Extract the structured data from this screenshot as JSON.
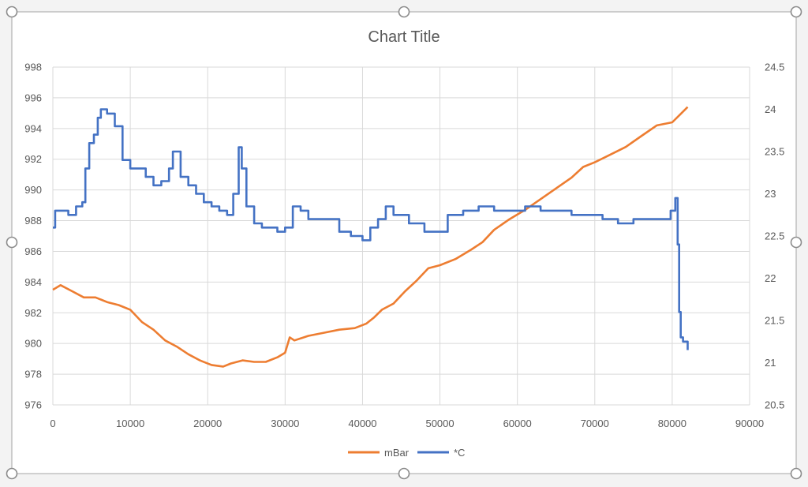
{
  "chart_data": {
    "type": "line",
    "title": "Chart Title",
    "xlabel": "",
    "ylabel": "",
    "y2label": "",
    "grid": true,
    "legend_position": "bottom",
    "xlim": [
      0,
      90000
    ],
    "xticks": [
      0,
      10000,
      20000,
      30000,
      40000,
      50000,
      60000,
      70000,
      80000,
      90000
    ],
    "ylim": [
      976,
      998
    ],
    "yticks": [
      976,
      978,
      980,
      982,
      984,
      986,
      988,
      990,
      992,
      994,
      996,
      998
    ],
    "y2lim": [
      20.5,
      24.5
    ],
    "y2ticks": [
      20.5,
      21,
      21.5,
      22,
      22.5,
      23,
      23.5,
      24,
      24.5
    ],
    "series": [
      {
        "name": "mBar",
        "axis": "left",
        "color": "#ED7D31",
        "x": [
          0,
          1000,
          2500,
          4000,
          5500,
          7000,
          8500,
          10000,
          11500,
          13000,
          14500,
          16000,
          17500,
          19000,
          20500,
          22000,
          23000,
          24500,
          26000,
          27500,
          29000,
          30000,
          30600,
          31200,
          33000,
          35000,
          37000,
          39000,
          40500,
          41500,
          42500,
          44000,
          45500,
          47000,
          48500,
          50000,
          52000,
          54000,
          55500,
          57000,
          59000,
          61000,
          63000,
          65000,
          67000,
          68500,
          70000,
          72000,
          74000,
          76000,
          78000,
          80000,
          81000,
          82000
        ],
        "values": [
          983.5,
          983.8,
          983.4,
          983.0,
          983.0,
          982.7,
          982.5,
          982.2,
          981.4,
          980.9,
          980.2,
          979.8,
          979.3,
          978.9,
          978.6,
          978.5,
          978.7,
          978.9,
          978.8,
          978.8,
          979.1,
          979.4,
          980.4,
          980.2,
          980.5,
          980.7,
          980.9,
          981.0,
          981.3,
          981.7,
          982.2,
          982.6,
          983.4,
          984.1,
          984.9,
          985.1,
          985.5,
          986.1,
          986.6,
          987.4,
          988.1,
          988.7,
          989.4,
          990.1,
          990.8,
          991.5,
          991.8,
          992.3,
          992.8,
          993.5,
          994.2,
          994.4,
          994.9,
          995.4
        ]
      },
      {
        "name": "*C",
        "axis": "right",
        "color": "#4472C4",
        "x": [
          0,
          300,
          1000,
          2000,
          3000,
          3800,
          4200,
          4700,
          5300,
          5800,
          6200,
          7000,
          8000,
          9000,
          10000,
          11000,
          12000,
          13000,
          14000,
          15000,
          15500,
          16500,
          17500,
          18500,
          19500,
          20500,
          21500,
          22500,
          23300,
          24000,
          24400,
          25000,
          26000,
          27000,
          28000,
          29000,
          30000,
          31000,
          32000,
          33000,
          35000,
          37000,
          38500,
          40000,
          41000,
          42000,
          43000,
          44000,
          46000,
          48000,
          49500,
          51000,
          53000,
          55000,
          57000,
          59000,
          61000,
          63000,
          65000,
          67000,
          69000,
          71000,
          73000,
          75000,
          77000,
          79000,
          79800,
          80400,
          80700,
          80900,
          81100,
          81400,
          82000
        ],
        "values": [
          22.6,
          22.8,
          22.8,
          22.75,
          22.85,
          22.9,
          23.3,
          23.6,
          23.7,
          23.9,
          24.0,
          23.95,
          23.8,
          23.4,
          23.3,
          23.3,
          23.2,
          23.1,
          23.15,
          23.3,
          23.5,
          23.2,
          23.1,
          23.0,
          22.9,
          22.85,
          22.8,
          22.75,
          23.0,
          23.55,
          23.3,
          22.85,
          22.65,
          22.6,
          22.6,
          22.55,
          22.6,
          22.85,
          22.8,
          22.7,
          22.7,
          22.55,
          22.5,
          22.45,
          22.6,
          22.7,
          22.85,
          22.75,
          22.65,
          22.55,
          22.55,
          22.75,
          22.8,
          22.85,
          22.8,
          22.8,
          22.85,
          22.8,
          22.8,
          22.75,
          22.75,
          22.7,
          22.65,
          22.7,
          22.7,
          22.7,
          22.8,
          22.95,
          22.4,
          21.6,
          21.3,
          21.25,
          21.15
        ]
      }
    ]
  }
}
